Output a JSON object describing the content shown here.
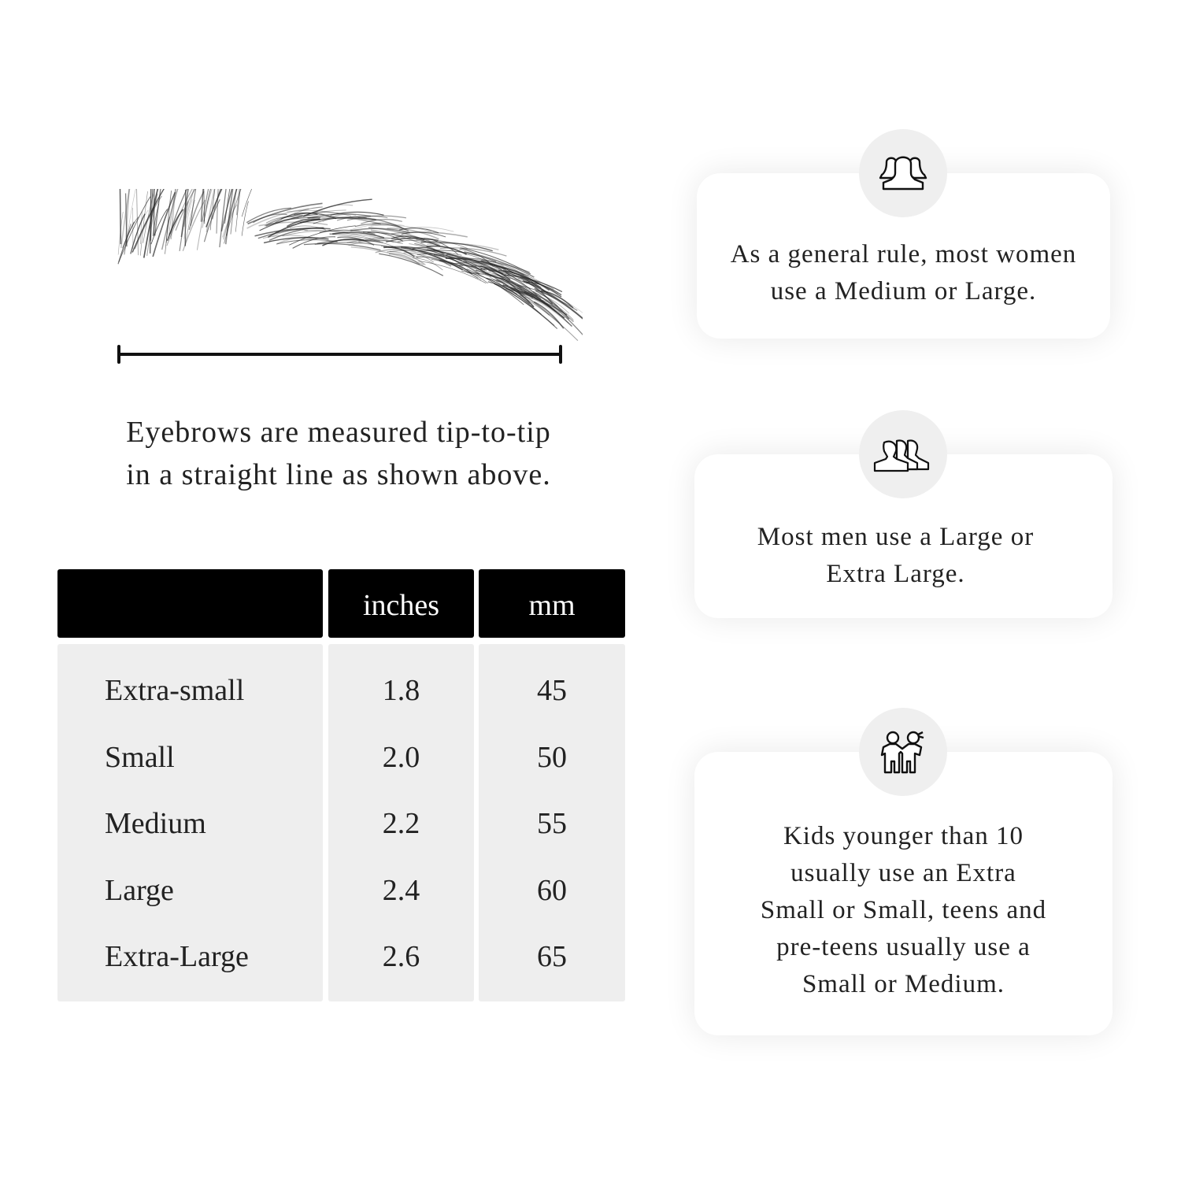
{
  "measure": {
    "caption_line1": "Eyebrows are measured tip-to-tip",
    "caption_line2": "in a straight line as shown above."
  },
  "table": {
    "headers": [
      "",
      "inches",
      "mm"
    ],
    "rows": [
      {
        "size": "Extra-small",
        "inches": "1.8",
        "mm": "45"
      },
      {
        "size": "Small",
        "inches": "2.0",
        "mm": "50"
      },
      {
        "size": "Medium",
        "inches": "2.2",
        "mm": "55"
      },
      {
        "size": "Large",
        "inches": "2.4",
        "mm": "60"
      },
      {
        "size": "Extra-Large",
        "inches": "2.6",
        "mm": "65"
      }
    ]
  },
  "cards": [
    {
      "icon": "women-group-icon",
      "lines": [
        "As a general rule, most women",
        "use a Medium or Large."
      ]
    },
    {
      "icon": "men-group-icon",
      "lines": [
        "Most men use a Large or",
        "Extra Large."
      ]
    },
    {
      "icon": "kids-icon",
      "lines": [
        "Kids younger than 10",
        "usually use an Extra",
        "Small or Small, teens and",
        "pre-teens usually use a",
        "Small or Medium."
      ]
    }
  ],
  "colors": {
    "header": "#000000",
    "table_body": "#eeeeee",
    "icon_circle": "#efefef"
  }
}
